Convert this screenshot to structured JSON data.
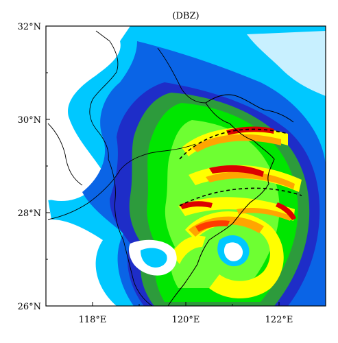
{
  "title": "(DBZ)",
  "x_ticks": [
    "118°E",
    "120°E",
    "122°E"
  ],
  "y_ticks": [
    "32°N",
    "30°N",
    "28°N",
    "26°N"
  ],
  "extent": {
    "lon": [
      117,
      123
    ],
    "lat": [
      26,
      32
    ]
  },
  "colors": {
    "background": "#ffffff",
    "reflectivity_scale": [
      "#c8f0ff",
      "#00c8ff",
      "#0a64e6",
      "#1e2dc8",
      "#2d9b3c",
      "#00e600",
      "#6eff32",
      "#ffff00",
      "#ffa500",
      "#ff3c00",
      "#dc0000",
      "#a00000"
    ]
  }
}
